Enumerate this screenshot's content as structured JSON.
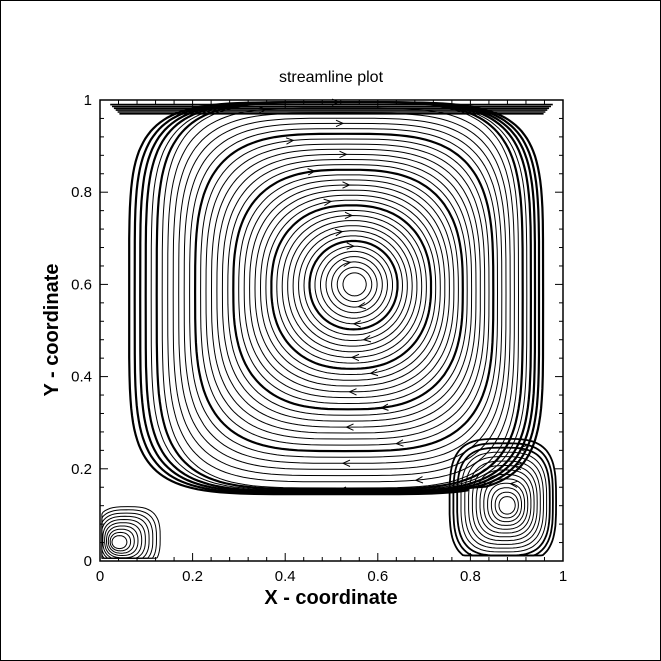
{
  "chart_data": {
    "type": "streamline",
    "title": "streamline plot",
    "xlabel": "X - coordinate",
    "ylabel": "Y - coordinate",
    "xlim": [
      0,
      1
    ],
    "ylim": [
      0,
      1
    ],
    "x_ticks": [
      "0",
      "0.2",
      "0.4",
      "0.6",
      "0.8",
      "1"
    ],
    "y_ticks": [
      "0",
      "0.2",
      "0.4",
      "0.6",
      "0.8",
      "1"
    ],
    "grid": false,
    "line_color": "#000000",
    "primary_vortex": {
      "center": [
        0.55,
        0.6
      ],
      "rotation": "clockwise"
    },
    "bottom_right_vortex": {
      "center": [
        0.88,
        0.12
      ],
      "rotation": "counterclockwise"
    },
    "bottom_left_vortex": {
      "center": [
        0.04,
        0.04
      ],
      "rotation": "counterclockwise"
    }
  }
}
